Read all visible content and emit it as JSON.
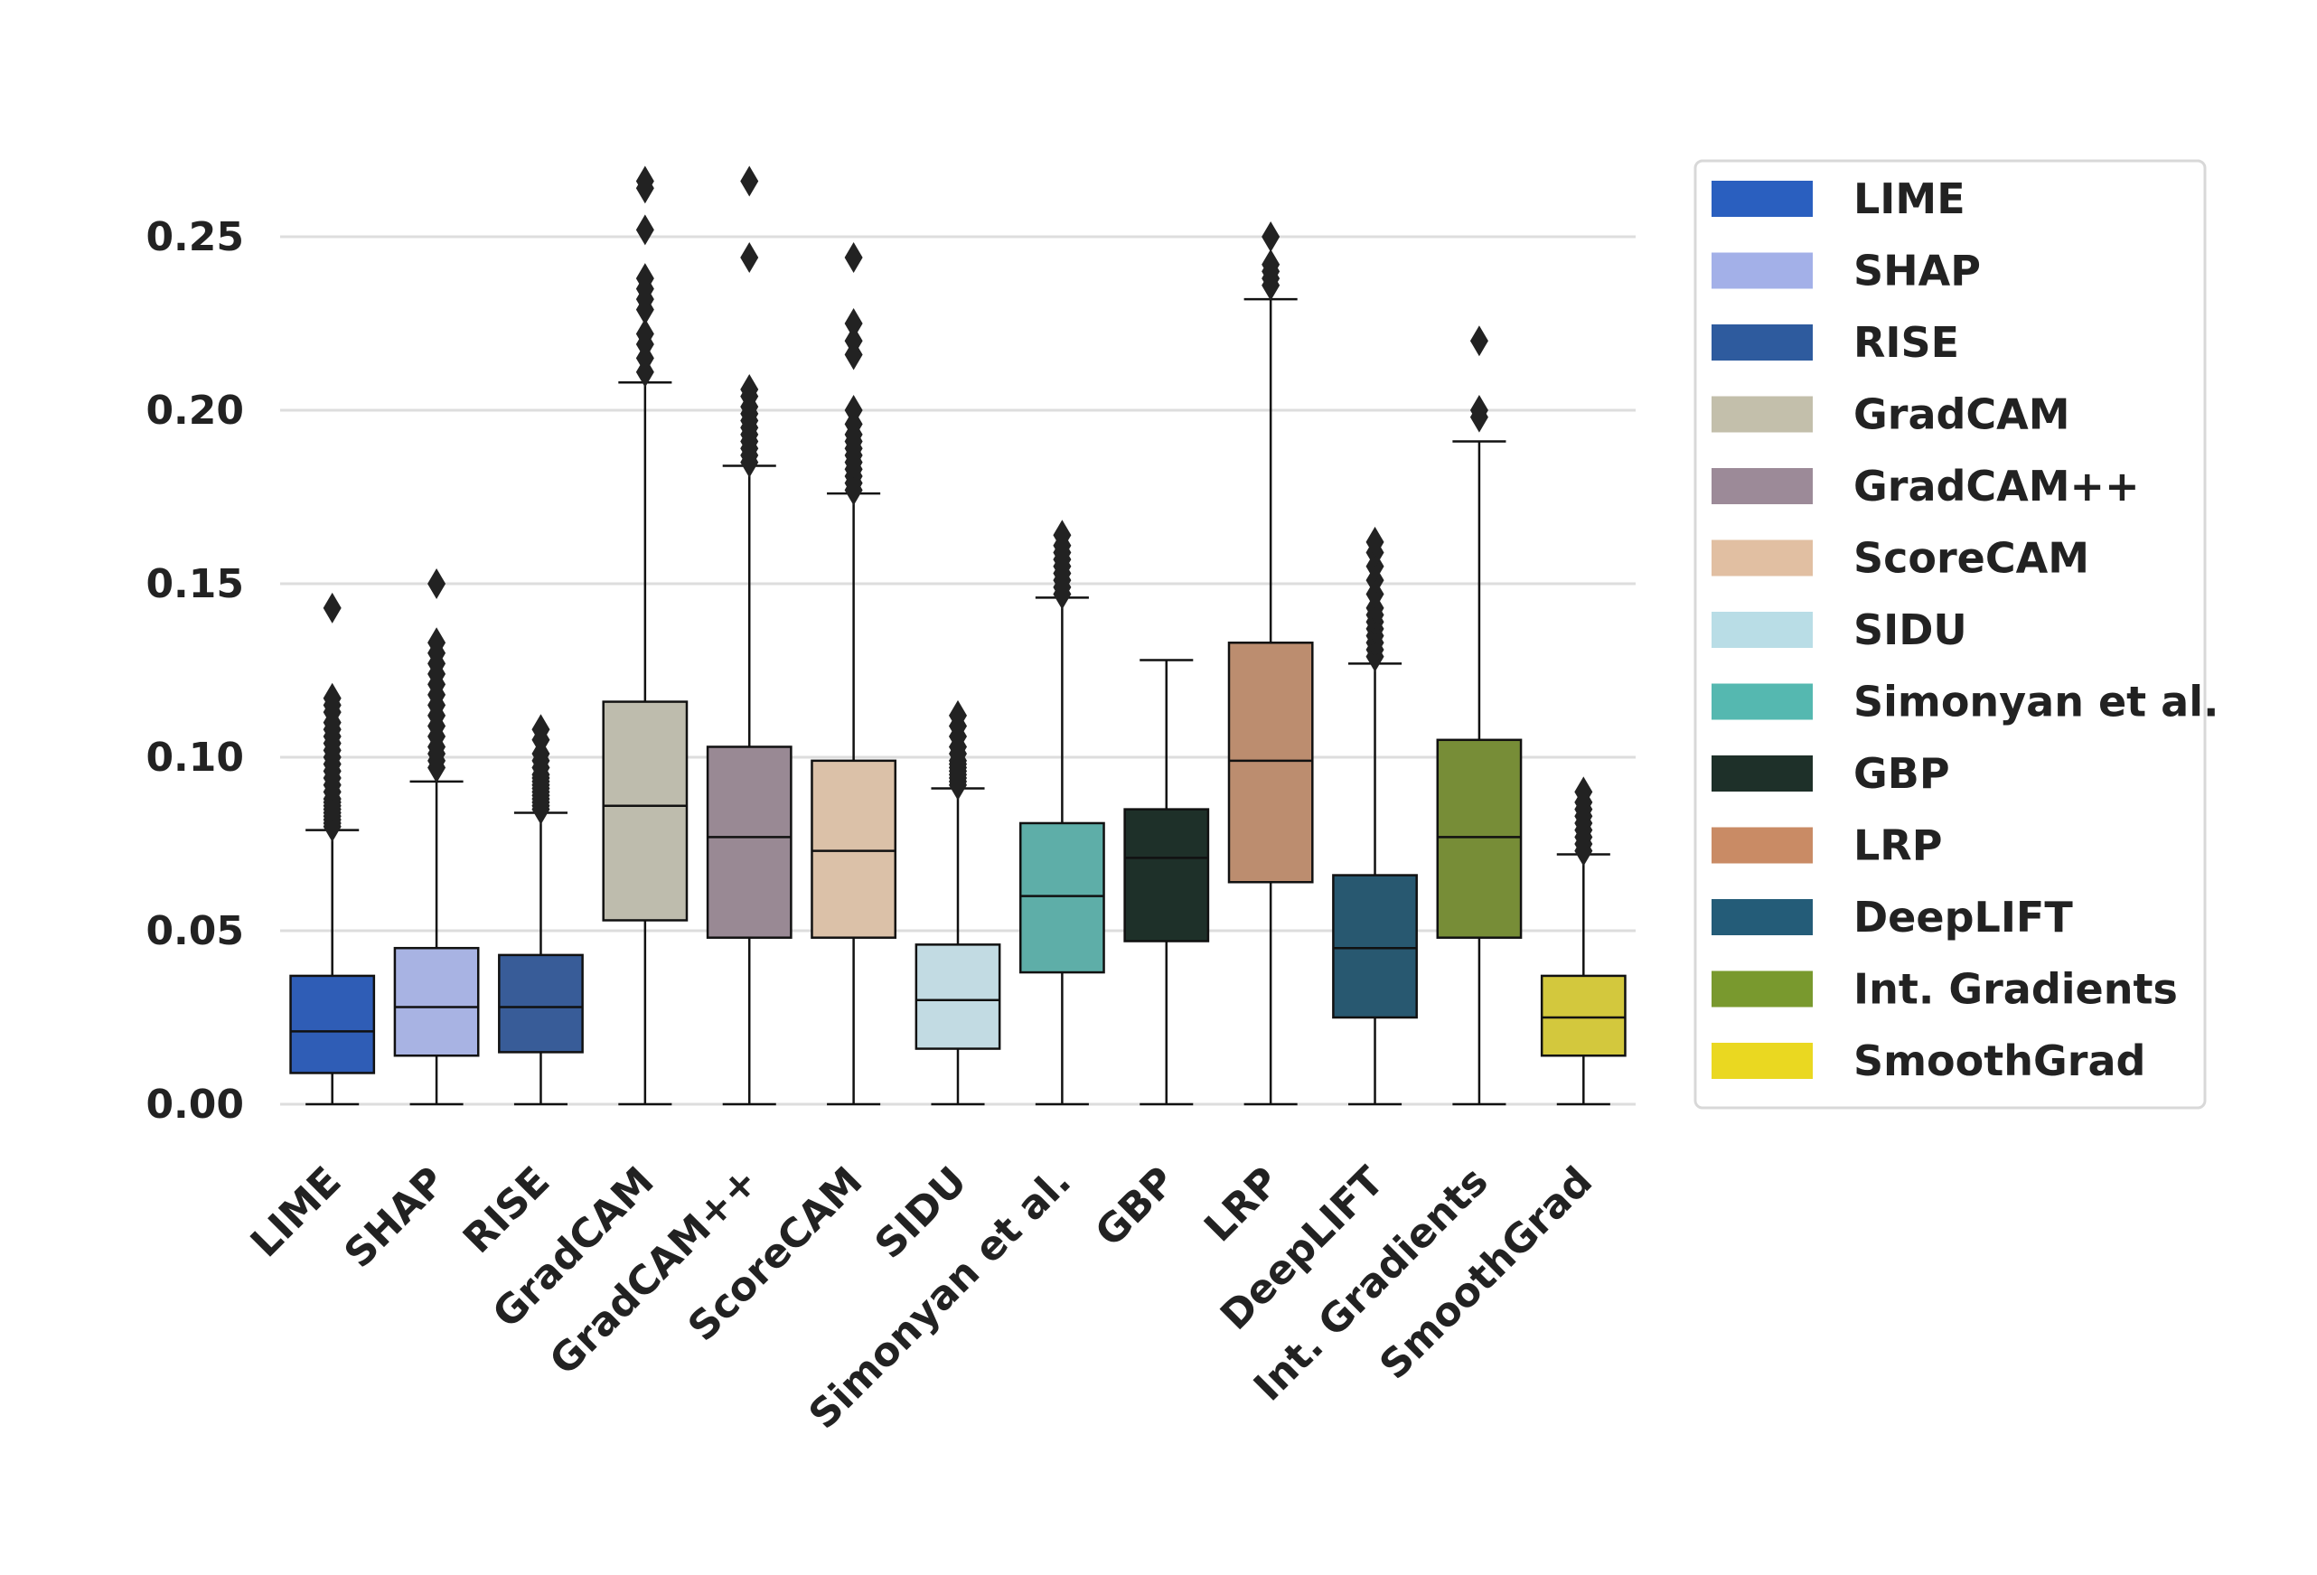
{
  "chart_data": {
    "type": "boxplot",
    "title": "",
    "xlabel": "",
    "ylabel": "",
    "ylim": [
      0.0,
      0.27
    ],
    "yticks": [
      "0.00",
      "0.05",
      "0.10",
      "0.15",
      "0.20",
      "0.25"
    ],
    "ytick_values": [
      0.0,
      0.05,
      0.1,
      0.15,
      0.2,
      0.25
    ],
    "grid": "horizontal",
    "legend_position": "right",
    "categories": [
      "LIME",
      "SHAP",
      "RISE",
      "GradCAM",
      "GradCAM++",
      "ScoreCAM",
      "SIDU",
      "Simonyan et al.",
      "GBP",
      "LRP",
      "DeepLIFT",
      "Int. Gradients",
      "SmoothGrad"
    ],
    "series": [
      {
        "name": "LIME",
        "color": "#2F5DB6",
        "legend_color": "#2A5FBF",
        "min": 0.0,
        "q1": 0.009,
        "median": 0.021,
        "q3": 0.037,
        "max": 0.079,
        "outliers": [
          0.08,
          0.081,
          0.082,
          0.083,
          0.084,
          0.085,
          0.086,
          0.087,
          0.088,
          0.09,
          0.092,
          0.094,
          0.096,
          0.098,
          0.1,
          0.102,
          0.104,
          0.106,
          0.108,
          0.11,
          0.113,
          0.115,
          0.117,
          0.143
        ]
      },
      {
        "name": "SHAP",
        "color": "#A8B3E3",
        "legend_color": "#A3B0E8",
        "min": 0.0,
        "q1": 0.014,
        "median": 0.028,
        "q3": 0.045,
        "max": 0.093,
        "outliers": [
          0.097,
          0.099,
          0.101,
          0.103,
          0.106,
          0.109,
          0.112,
          0.115,
          0.118,
          0.121,
          0.124,
          0.127,
          0.13,
          0.133,
          0.15
        ]
      },
      {
        "name": "RISE",
        "color": "#385C98",
        "legend_color": "#2E5B9E",
        "min": 0.0,
        "q1": 0.015,
        "median": 0.028,
        "q3": 0.043,
        "max": 0.084,
        "outliers": [
          0.085,
          0.086,
          0.087,
          0.088,
          0.089,
          0.09,
          0.091,
          0.092,
          0.093,
          0.094,
          0.095,
          0.097,
          0.099,
          0.101,
          0.105,
          0.108
        ]
      },
      {
        "name": "GradCAM",
        "color": "#BEBCAD",
        "legend_color": "#C3BFAB",
        "min": 0.0,
        "q1": 0.053,
        "median": 0.086,
        "q3": 0.116,
        "max": 0.208,
        "outliers": [
          0.211,
          0.215,
          0.219,
          0.222,
          0.229,
          0.232,
          0.235,
          0.238,
          0.252,
          0.264,
          0.266
        ]
      },
      {
        "name": "GradCAM++",
        "color": "#998994",
        "legend_color": "#9C8A98",
        "min": 0.0,
        "q1": 0.048,
        "median": 0.077,
        "q3": 0.103,
        "max": 0.184,
        "outliers": [
          0.185,
          0.187,
          0.189,
          0.191,
          0.193,
          0.195,
          0.197,
          0.199,
          0.201,
          0.204,
          0.206,
          0.244,
          0.266
        ]
      },
      {
        "name": "ScoreCAM",
        "color": "#DBC1A8",
        "legend_color": "#E1BFA2",
        "min": 0.0,
        "q1": 0.048,
        "median": 0.073,
        "q3": 0.099,
        "max": 0.176,
        "outliers": [
          0.177,
          0.179,
          0.181,
          0.183,
          0.185,
          0.187,
          0.189,
          0.191,
          0.193,
          0.196,
          0.2,
          0.216,
          0.22,
          0.225,
          0.244
        ]
      },
      {
        "name": "SIDU",
        "color": "#C2DBE3",
        "legend_color": "#B9DDE6",
        "min": 0.0,
        "q1": 0.016,
        "median": 0.03,
        "q3": 0.046,
        "max": 0.091,
        "outliers": [
          0.092,
          0.093,
          0.094,
          0.095,
          0.096,
          0.097,
          0.098,
          0.099,
          0.101,
          0.103,
          0.106,
          0.109,
          0.112
        ]
      },
      {
        "name": "Simonyan et al.",
        "color": "#5EAEA8",
        "legend_color": "#55B8B0",
        "min": 0.0,
        "q1": 0.038,
        "median": 0.06,
        "q3": 0.081,
        "max": 0.146,
        "outliers": [
          0.147,
          0.149,
          0.151,
          0.153,
          0.155,
          0.157,
          0.159,
          0.161,
          0.164
        ]
      },
      {
        "name": "GBP",
        "color": "#1E3029",
        "legend_color": "#1E3029",
        "min": 0.0,
        "q1": 0.047,
        "median": 0.071,
        "q3": 0.085,
        "max": 0.128,
        "outliers": []
      },
      {
        "name": "LRP",
        "color": "#BC8D6F",
        "legend_color": "#C98B65",
        "min": 0.0,
        "q1": 0.064,
        "median": 0.099,
        "q3": 0.133,
        "max": 0.232,
        "outliers": [
          0.236,
          0.238,
          0.24,
          0.242,
          0.25
        ]
      },
      {
        "name": "DeepLIFT",
        "color": "#285870",
        "legend_color": "#245C78",
        "min": 0.0,
        "q1": 0.025,
        "median": 0.045,
        "q3": 0.066,
        "max": 0.127,
        "outliers": [
          0.129,
          0.131,
          0.133,
          0.135,
          0.137,
          0.139,
          0.141,
          0.143,
          0.147,
          0.151,
          0.155,
          0.159,
          0.162
        ]
      },
      {
        "name": "Int. Gradients",
        "color": "#778D37",
        "legend_color": "#79992E",
        "min": 0.0,
        "q1": 0.048,
        "median": 0.077,
        "q3": 0.105,
        "max": 0.191,
        "outliers": [
          0.198,
          0.2,
          0.22
        ]
      },
      {
        "name": "SmoothGrad",
        "color": "#D3C83D",
        "legend_color": "#EAD821",
        "min": 0.0,
        "q1": 0.014,
        "median": 0.025,
        "q3": 0.037,
        "max": 0.072,
        "outliers": [
          0.073,
          0.075,
          0.077,
          0.079,
          0.081,
          0.083,
          0.085,
          0.087,
          0.09
        ]
      }
    ]
  }
}
